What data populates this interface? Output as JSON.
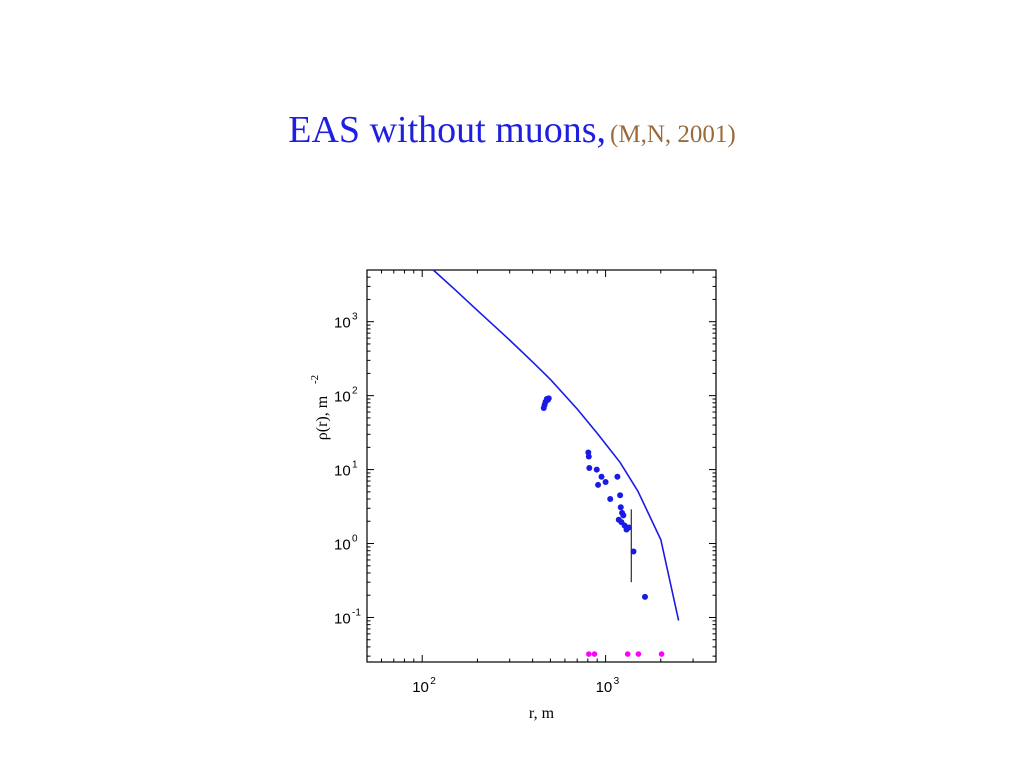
{
  "title": {
    "main": "EAS without muons,",
    "sub": "(M,N, 2001)"
  },
  "chart_data": {
    "type": "scatter",
    "scale": {
      "x": "log",
      "y": "log"
    },
    "xlim": [
      50,
      4000
    ],
    "ylim": [
      0.025,
      5000
    ],
    "xlabel": "r, m",
    "ylabel": "ρ(r), m",
    "ylabel_exp": "-2",
    "x_ticks": [
      {
        "value": 100,
        "base": "10",
        "exp": "2"
      },
      {
        "value": 1000,
        "base": "10",
        "exp": "3"
      }
    ],
    "y_ticks": [
      {
        "value": 0.1,
        "base": "10",
        "exp": "-1"
      },
      {
        "value": 1,
        "base": "10",
        "exp": "0"
      },
      {
        "value": 10,
        "base": "10",
        "exp": "1"
      },
      {
        "value": 100,
        "base": "10",
        "exp": "2"
      },
      {
        "value": 1000,
        "base": "10",
        "exp": "3"
      }
    ],
    "grid": false,
    "colors": {
      "data": "#1a1ae6",
      "fit": "#1a1ae6",
      "below_threshold": "#ff00ff",
      "error_bar": "#000000"
    },
    "series": [
      {
        "kind": "points",
        "points": [
          [
            460,
            68
          ],
          [
            465,
            75
          ],
          [
            470,
            82
          ],
          [
            478,
            90
          ],
          [
            485,
            88
          ],
          [
            490,
            92
          ],
          [
            805,
            17
          ],
          [
            810,
            15
          ],
          [
            815,
            10.5
          ],
          [
            895,
            10
          ],
          [
            910,
            6.2
          ],
          [
            950,
            8
          ],
          [
            1000,
            6.8
          ],
          [
            1060,
            4
          ],
          [
            1160,
            8
          ],
          [
            1200,
            4.5
          ],
          [
            1180,
            2.1
          ],
          [
            1210,
            3.1
          ],
          [
            1230,
            2.6
          ],
          [
            1250,
            2.4
          ],
          [
            1220,
            1.95
          ],
          [
            1270,
            1.75
          ],
          [
            1300,
            1.55
          ],
          [
            1340,
            1.65
          ],
          [
            1420,
            0.78
          ],
          [
            1640,
            0.19
          ]
        ]
      },
      {
        "kind": "points_below_threshold",
        "points": [
          [
            810,
            0.032
          ],
          [
            870,
            0.032
          ],
          [
            1320,
            0.032
          ],
          [
            1510,
            0.032
          ],
          [
            2020,
            0.032
          ]
        ]
      },
      {
        "kind": "fit_curve",
        "points": [
          [
            115,
            5000
          ],
          [
            150,
            2750
          ],
          [
            200,
            1420
          ],
          [
            300,
            563
          ],
          [
            400,
            286
          ],
          [
            500,
            166
          ],
          [
            700,
            66
          ],
          [
            900,
            31
          ],
          [
            1200,
            12.5
          ],
          [
            1500,
            5.1
          ],
          [
            2000,
            1.13
          ],
          [
            2500,
            0.091
          ]
        ]
      },
      {
        "kind": "error_bar",
        "x": 1380,
        "y": 1.3,
        "low": 0.3,
        "high": 2.9
      }
    ]
  }
}
